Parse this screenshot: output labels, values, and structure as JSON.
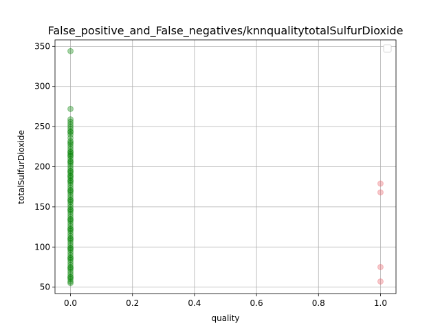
{
  "chart_data": {
    "type": "scatter",
    "title": "False_positive_and_False_negatives/knnqualitytotalSulfurDioxide",
    "xlabel": "quality",
    "ylabel": "totalSulfurDioxide",
    "xlim": [
      -0.05,
      1.05
    ],
    "ylim": [
      42,
      358
    ],
    "xticks": [
      0.0,
      0.2,
      0.4,
      0.6,
      0.8,
      1.0
    ],
    "xtick_labels": [
      "0.0",
      "0.2",
      "0.4",
      "0.6",
      "0.8",
      "1.0"
    ],
    "yticks": [
      50,
      100,
      150,
      200,
      250,
      300,
      350
    ],
    "ytick_labels": [
      "50",
      "100",
      "150",
      "200",
      "250",
      "300",
      "350"
    ],
    "grid": true,
    "legend": {
      "placement": "top-right",
      "entries": []
    },
    "series": [
      {
        "color": "#008000",
        "x": [
          0,
          0,
          0,
          0,
          0,
          0,
          0,
          0,
          0,
          0,
          0,
          0,
          0,
          0,
          0,
          0,
          0,
          0,
          0,
          0,
          0,
          0,
          0,
          0,
          0,
          0,
          0,
          0,
          0,
          0,
          0,
          0,
          0,
          0,
          0,
          0,
          0,
          0,
          0,
          0,
          0,
          0,
          0,
          0,
          0,
          0,
          0,
          0,
          0,
          0,
          0,
          0,
          0,
          0,
          0,
          0,
          0,
          0,
          0,
          0,
          0,
          0,
          0,
          0,
          0,
          0,
          0,
          0,
          0,
          0,
          0,
          0,
          0,
          0,
          0,
          0,
          0,
          0,
          0,
          0,
          0,
          0,
          0,
          0,
          0,
          0,
          0,
          0
        ],
        "y": [
          344,
          272,
          259,
          256,
          253,
          250,
          247,
          244,
          240,
          236,
          232,
          228,
          225,
          222,
          219,
          216,
          213,
          210,
          207,
          204,
          201,
          198,
          195,
          192,
          189,
          186,
          183,
          180,
          177,
          174,
          171,
          168,
          165,
          162,
          159,
          156,
          153,
          150,
          147,
          144,
          141,
          138,
          135,
          132,
          129,
          126,
          123,
          120,
          117,
          114,
          111,
          108,
          105,
          102,
          99,
          96,
          93,
          90,
          87,
          84,
          81,
          78,
          75,
          72,
          69,
          66,
          63,
          60,
          57,
          55,
          243,
          230,
          218,
          206,
          194,
          182,
          170,
          158,
          146,
          134,
          122,
          110,
          98,
          86,
          74,
          62,
          214,
          188
        ]
      },
      {
        "color": "#e8606a",
        "x": [
          1.0,
          1.0,
          1.0,
          1.0
        ],
        "y": [
          179,
          168,
          75,
          57
        ]
      }
    ]
  }
}
